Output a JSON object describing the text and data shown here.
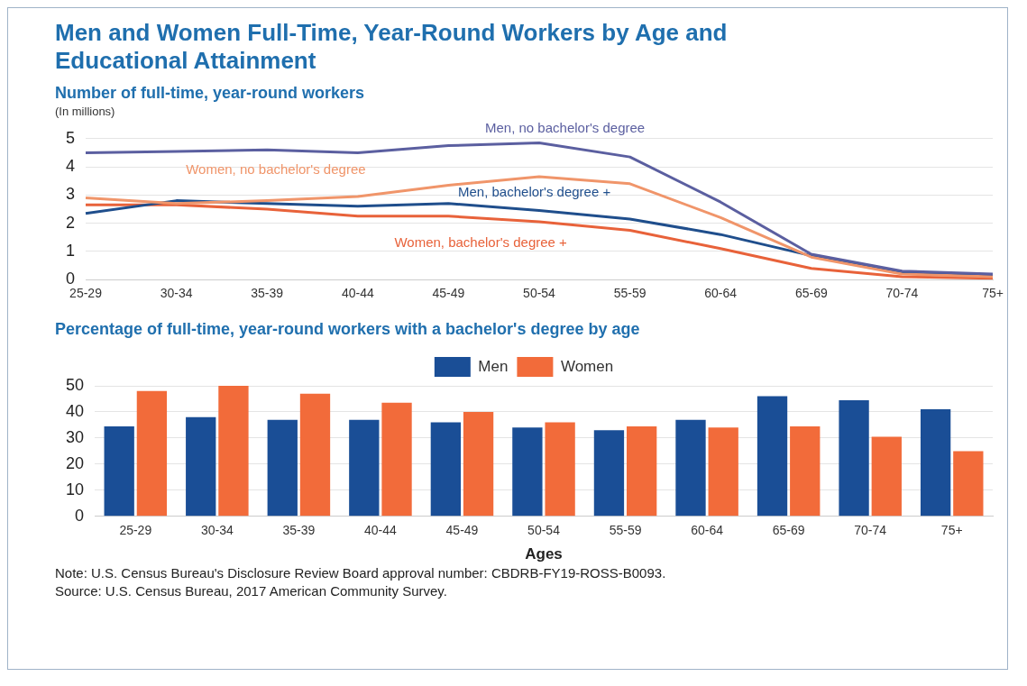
{
  "chart_data": [
    {
      "type": "line",
      "title": "Men and Women Full-Time, Year-Round Workers by Age and Educational Attainment",
      "subtitle": "Number of full-time, year-round workers",
      "ylabel": "(In millions)",
      "categories": [
        "25-29",
        "30-34",
        "35-39",
        "40-44",
        "45-49",
        "50-54",
        "55-59",
        "60-64",
        "65-69",
        "70-74",
        "75+"
      ],
      "ylim": [
        0,
        5
      ],
      "yticks": [
        0,
        1,
        2,
        3,
        4,
        5
      ],
      "grid": "y",
      "marker": "none",
      "series": [
        {
          "name": "Men, no bachelor's degree",
          "color": "#5b5fa0",
          "values": [
            4.5,
            4.55,
            4.6,
            4.5,
            4.75,
            4.85,
            4.35,
            2.75,
            0.9,
            0.3,
            0.2
          ]
        },
        {
          "name": "Women, no bachelor's degree",
          "color": "#f0956a",
          "values": [
            2.9,
            2.7,
            2.8,
            2.95,
            3.35,
            3.65,
            3.4,
            2.2,
            0.8,
            0.2,
            0.1
          ]
        },
        {
          "name": "Men, bachelor's degree +",
          "color": "#1f4e8c",
          "values": [
            2.35,
            2.8,
            2.7,
            2.6,
            2.7,
            2.45,
            2.15,
            1.6,
            0.85,
            0.25,
            0.15
          ]
        },
        {
          "name": "Women, bachelor's degree +",
          "color": "#e8623a",
          "values": [
            2.65,
            2.65,
            2.5,
            2.25,
            2.25,
            2.05,
            1.75,
            1.1,
            0.4,
            0.1,
            0.05
          ]
        }
      ]
    },
    {
      "type": "bar",
      "title": "Percentage of full-time, year-round workers with a bachelor's degree by age",
      "xlabel": "Ages",
      "categories": [
        "25-29",
        "30-34",
        "35-39",
        "40-44",
        "45-49",
        "50-54",
        "55-59",
        "60-64",
        "65-69",
        "70-74",
        "75+"
      ],
      "ylim": [
        0,
        50
      ],
      "yticks": [
        0,
        10,
        20,
        30,
        40,
        50
      ],
      "grid": "y",
      "legend": "top",
      "series": [
        {
          "name": "Men",
          "color": "#1a4e96",
          "values": [
            34.5,
            38,
            37,
            37,
            36,
            34,
            33,
            37,
            46,
            44.5,
            41
          ]
        },
        {
          "name": "Women",
          "color": "#f26b3a",
          "values": [
            48,
            50,
            47,
            43.5,
            40,
            36,
            34.5,
            34,
            34.5,
            30.5,
            25
          ]
        }
      ],
      "annotations": [
        "Note: U.S. Census Bureau's Disclosure Review Board approval number: CBDRB-FY19-ROSS-B0093.",
        "Source: U.S. Census Bureau, 2017 American Community Survey."
      ]
    }
  ]
}
